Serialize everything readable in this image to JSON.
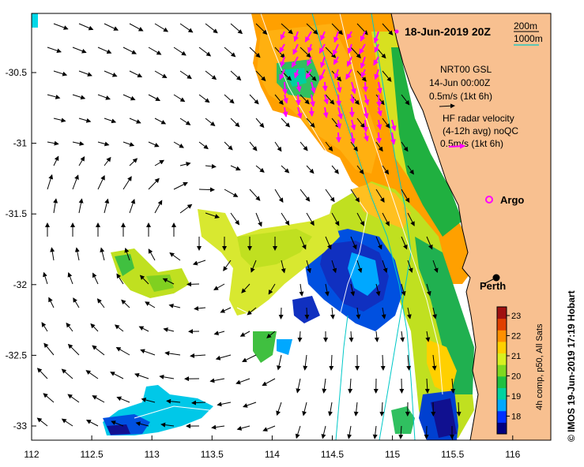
{
  "title": "18-Jun-2019 20Z",
  "axes": {
    "lon_ticks": [
      "112",
      "112.5",
      "113",
      "113.5",
      "114",
      "114.5",
      "115",
      "115.5",
      "116"
    ],
    "lat_ticks": [
      "-30.5",
      "-31",
      "-31.5",
      "-32",
      "-32.5",
      "-33"
    ]
  },
  "contour_legend": {
    "line1": "200m",
    "line2": "1000m",
    "color1": "#000000",
    "color2": "#00c8c8"
  },
  "model_legend": {
    "line1": "NRT00 GSL",
    "line2": "14-Jun 00:00Z",
    "line3": "0.5m/s (1kt 6h)"
  },
  "radar_legend": {
    "line1": "HF radar velocity",
    "line2": "(4-12h avg) noQC",
    "line3": "0.5m/s (1kt 6h)",
    "arrow_color": "#ff00ff"
  },
  "argo": {
    "label": "Argo",
    "color": "#ff00ff"
  },
  "city": {
    "label": "Perth"
  },
  "colorbar": {
    "ticks": [
      "23",
      "22",
      "21",
      "20",
      "19",
      "18"
    ],
    "label": "4h comp, p50, All Sats",
    "colors": [
      "#000080",
      "#0030ff",
      "#00a8ff",
      "#00d2a0",
      "#20c040",
      "#80d820",
      "#d8f020",
      "#ffd000",
      "#ff9000",
      "#e04000",
      "#a01010"
    ]
  },
  "credit": "© IMOS 19-Jun-2019 17:19 Hobart",
  "colors": {
    "land": "#f8c090",
    "coast": "#000000",
    "sea": "#ffffff"
  }
}
